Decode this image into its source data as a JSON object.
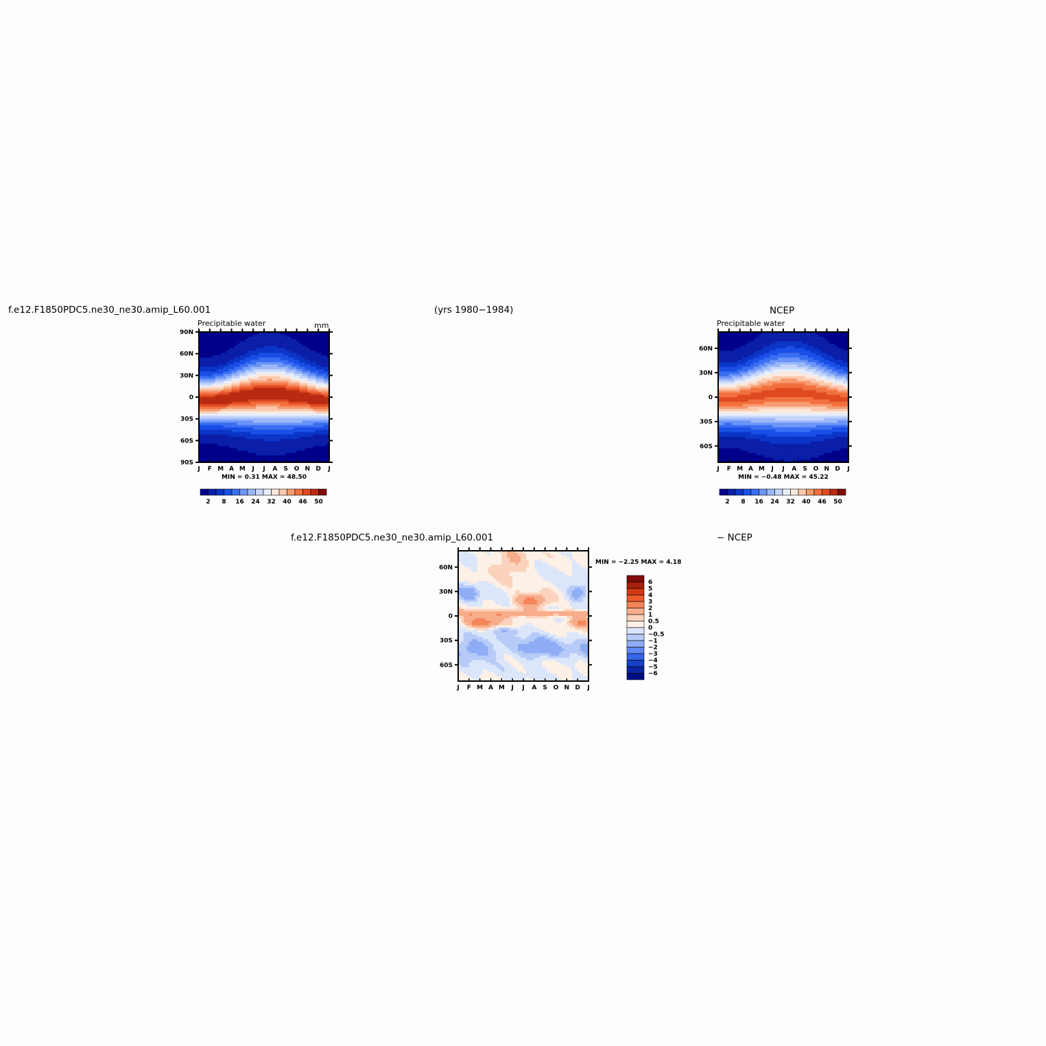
{
  "header": {
    "case_name": "f.e12.F1850PDC5.ne30_ne30.amip_L60.001",
    "years": "(yrs 1980−1984)",
    "obs_name": "NCEP"
  },
  "diff_header": {
    "case_name": "f.e12.F1850PDC5.ne30_ne30.amip_L60.001",
    "obs_suffix": "− NCEP"
  },
  "chart_data": [
    {
      "id": "model",
      "type": "heatmap",
      "title": "Precipitable water",
      "units": "mm",
      "x_ticks": [
        "J",
        "F",
        "M",
        "A",
        "M",
        "J",
        "J",
        "A",
        "S",
        "O",
        "N",
        "D",
        "J"
      ],
      "y_ticks": [
        "90N",
        "60N",
        "30N",
        "0",
        "30S",
        "60S",
        "90S"
      ],
      "ylim": [
        -90,
        90
      ],
      "min_label": "MIN =",
      "min_value": "0.31",
      "max_label": "MAX =",
      "max_value": "48.50",
      "stats_text": "MIN =    0.31  MAX =   48.50",
      "colorbar_labels": [
        "2",
        "8",
        "16",
        "24",
        "32",
        "40",
        "46",
        "50"
      ],
      "peak_value": 48.5,
      "peak_lat_jan": -5,
      "peak_lat_amp": 10
    },
    {
      "id": "obs",
      "type": "heatmap",
      "title": "Precipitable water",
      "units": "",
      "x_ticks": [
        "J",
        "F",
        "M",
        "A",
        "M",
        "J",
        "J",
        "A",
        "S",
        "O",
        "N",
        "D",
        "J"
      ],
      "y_ticks": [
        "60N",
        "30N",
        "0",
        "30S",
        "60S"
      ],
      "ylim": [
        -80,
        80
      ],
      "min_label": "MIN =",
      "min_value": "−0.48",
      "max_label": "MAX =",
      "max_value": "45.22",
      "stats_text": "MIN =   −0.48  MAX =   45.22",
      "colorbar_labels": [
        "2",
        "8",
        "16",
        "24",
        "32",
        "40",
        "46",
        "50"
      ],
      "peak_value": 45.2,
      "peak_lat_jan": -3,
      "peak_lat_amp": 9
    },
    {
      "id": "diff",
      "type": "heatmap",
      "title": "",
      "units": "",
      "x_ticks": [
        "J",
        "F",
        "M",
        "A",
        "M",
        "J",
        "J",
        "A",
        "S",
        "O",
        "N",
        "D",
        "J"
      ],
      "y_ticks": [
        "60N",
        "30N",
        "0",
        "30S",
        "60S"
      ],
      "ylim": [
        -80,
        80
      ],
      "min_label": "MIN =",
      "min_value": "−2.25",
      "max_label": "MAX =",
      "max_value": "4.18",
      "stats_text": "MIN =   −2.25  MAX =    4.18",
      "colorbar_labels": [
        "6",
        "5",
        "4",
        "3",
        "2",
        "1",
        "0.5",
        "0",
        "−0.5",
        "−1",
        "−2",
        "−3",
        "−4",
        "−5",
        "−6"
      ]
    }
  ],
  "colors": {
    "full_palette": [
      "#00008a",
      "#0a1ea8",
      "#0b35c8",
      "#1a4fe6",
      "#3a6ef2",
      "#6c95f7",
      "#9bb8fa",
      "#c6d6fb",
      "#e7eefc",
      "#fce8dc",
      "#fbc9ac",
      "#f79a70",
      "#f2703f",
      "#df4a21",
      "#b92a12",
      "#7e0c07"
    ],
    "diff_palette_top_to_bottom": [
      "#7e0c07",
      "#a81e0c",
      "#d23814",
      "#ee5a2b",
      "#f48558",
      "#f7ad8a",
      "#fbd3bd",
      "#fdf0e6",
      "#dbe6fb",
      "#b7cbf8",
      "#8eadf5",
      "#5f88f0",
      "#3464e8",
      "#1640c6",
      "#0a24a4",
      "#000e84"
    ]
  }
}
